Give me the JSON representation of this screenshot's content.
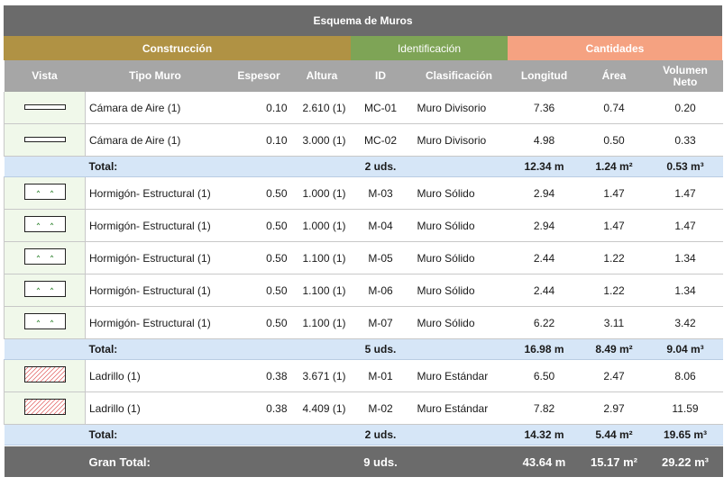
{
  "title": "Esquema de Muros",
  "groups": {
    "construccion": "Construcción",
    "identificacion": "Identificación",
    "cantidades": "Cantidades"
  },
  "headers": {
    "vista": "Vista",
    "tipo": "Tipo Muro",
    "espesor": "Espesor",
    "altura": "Altura",
    "id": "ID",
    "clasificacion": "Clasificación",
    "longitud": "Longitud",
    "area": "Área",
    "volumen_l1": "Volumen",
    "volumen_l2": "Neto"
  },
  "total_label": "Total:",
  "grand_label": "Gran Total:",
  "swatches": {
    "camara": "thin-line-swatch-icon",
    "hormigon": "concrete-pattern-swatch-icon",
    "ladrillo": "brick-hatch-swatch-icon"
  },
  "colors": {
    "title_bg": "#6b6b6b",
    "construccion": "#b09244",
    "identificacion": "#7ea456",
    "cantidades": "#f5a281",
    "total_bg": "#d6e6f7",
    "vista_bg": "#f0f8ea"
  },
  "groups_rows": [
    {
      "rows": [
        {
          "tipo": "Cámara de Aire (1)",
          "espesor": "0.10",
          "altura": "2.610 (1)",
          "id": "MC-01",
          "clasificacion": "Muro Divisorio",
          "longitud": "7.36",
          "area": "0.74",
          "volumen": "0.20"
        },
        {
          "tipo": "Cámara de Aire (1)",
          "espesor": "0.10",
          "altura": "3.000 (1)",
          "id": "MC-02",
          "clasificacion": "Muro Divisorio",
          "longitud": "4.98",
          "area": "0.50",
          "volumen": "0.33"
        }
      ],
      "total": {
        "count": "2 uds.",
        "longitud": "12.34 m",
        "area": "1.24 m²",
        "volumen": "0.53 m³"
      }
    },
    {
      "rows": [
        {
          "tipo": "Hormigón- Estructural (1)",
          "espesor": "0.50",
          "altura": "1.000 (1)",
          "id": "M-03",
          "clasificacion": "Muro Sólido",
          "longitud": "2.94",
          "area": "1.47",
          "volumen": "1.47"
        },
        {
          "tipo": "Hormigón- Estructural (1)",
          "espesor": "0.50",
          "altura": "1.000 (1)",
          "id": "M-04",
          "clasificacion": "Muro Sólido",
          "longitud": "2.94",
          "area": "1.47",
          "volumen": "1.47"
        },
        {
          "tipo": "Hormigón- Estructural (1)",
          "espesor": "0.50",
          "altura": "1.100 (1)",
          "id": "M-05",
          "clasificacion": "Muro Sólido",
          "longitud": "2.44",
          "area": "1.22",
          "volumen": "1.34"
        },
        {
          "tipo": "Hormigón- Estructural (1)",
          "espesor": "0.50",
          "altura": "1.100 (1)",
          "id": "M-06",
          "clasificacion": "Muro Sólido",
          "longitud": "2.44",
          "area": "1.22",
          "volumen": "1.34"
        },
        {
          "tipo": "Hormigón- Estructural (1)",
          "espesor": "0.50",
          "altura": "1.100 (1)",
          "id": "M-07",
          "clasificacion": "Muro Sólido",
          "longitud": "6.22",
          "area": "3.11",
          "volumen": "3.42"
        }
      ],
      "total": {
        "count": "5 uds.",
        "longitud": "16.98 m",
        "area": "8.49 m²",
        "volumen": "9.04 m³"
      }
    },
    {
      "rows": [
        {
          "tipo": "Ladrillo (1)",
          "espesor": "0.38",
          "altura": "3.671 (1)",
          "id": "M-01",
          "clasificacion": "Muro Estándar",
          "longitud": "6.50",
          "area": "2.47",
          "volumen": "8.06"
        },
        {
          "tipo": "Ladrillo (1)",
          "espesor": "0.38",
          "altura": "4.409 (1)",
          "id": "M-02",
          "clasificacion": "Muro Estándar",
          "longitud": "7.82",
          "area": "2.97",
          "volumen": "11.59"
        }
      ],
      "total": {
        "count": "2 uds.",
        "longitud": "14.32 m",
        "area": "5.44 m²",
        "volumen": "19.65 m³"
      }
    }
  ],
  "grand_total": {
    "count": "9 uds.",
    "longitud": "43.64 m",
    "area": "15.17 m²",
    "volumen": "29.22 m³"
  }
}
